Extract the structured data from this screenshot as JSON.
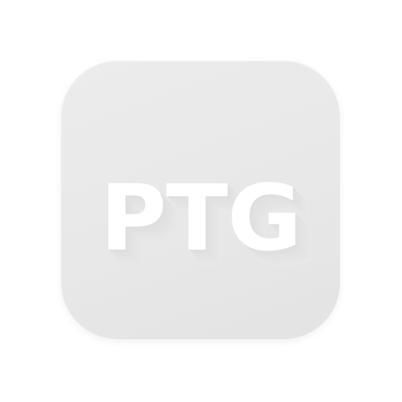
{
  "app_icon": {
    "monogram": "PTG",
    "tile_color": "#e8e8e8",
    "text_color": "#ffffff",
    "background_color": "#ffffff"
  }
}
